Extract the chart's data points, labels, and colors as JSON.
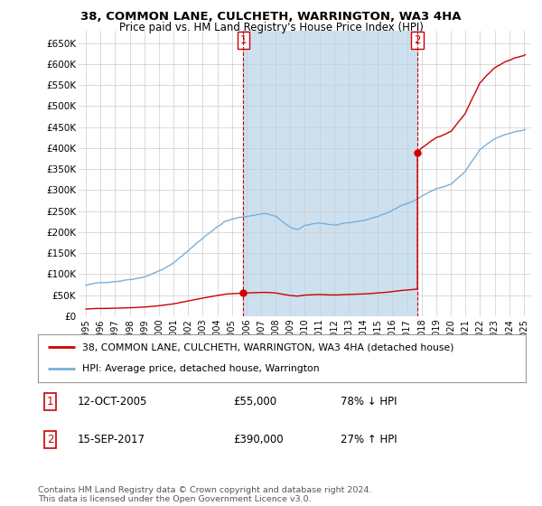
{
  "title_line1": "38, COMMON LANE, CULCHETH, WARRINGTON, WA3 4HA",
  "title_line2": "Price paid vs. HM Land Registry's House Price Index (HPI)",
  "legend_line1": "38, COMMON LANE, CULCHETH, WARRINGTON, WA3 4HA (detached house)",
  "legend_line2": "HPI: Average price, detached house, Warrington",
  "footnote": "Contains HM Land Registry data © Crown copyright and database right 2024.\nThis data is licensed under the Open Government Licence v3.0.",
  "annotation1_date": "12-OCT-2005",
  "annotation1_price": "£55,000",
  "annotation1_hpi": "78% ↓ HPI",
  "annotation2_date": "15-SEP-2017",
  "annotation2_price": "£390,000",
  "annotation2_hpi": "27% ↑ HPI",
  "vline1_x": 2005.79,
  "vline2_x": 2017.71,
  "sale1_x": 2005.79,
  "sale1_y": 55000,
  "sale2_x": 2017.71,
  "sale2_y": 390000,
  "ylim": [
    0,
    680000
  ],
  "xlim": [
    1994.5,
    2025.5
  ],
  "yticks": [
    0,
    50000,
    100000,
    150000,
    200000,
    250000,
    300000,
    350000,
    400000,
    450000,
    500000,
    550000,
    600000,
    650000
  ],
  "ytick_labels": [
    "£0",
    "£50K",
    "£100K",
    "£150K",
    "£200K",
    "£250K",
    "£300K",
    "£350K",
    "£400K",
    "£450K",
    "£500K",
    "£550K",
    "£600K",
    "£650K"
  ],
  "xticks": [
    1995,
    1996,
    1997,
    1998,
    1999,
    2000,
    2001,
    2002,
    2003,
    2004,
    2005,
    2006,
    2007,
    2008,
    2009,
    2010,
    2011,
    2012,
    2013,
    2014,
    2015,
    2016,
    2017,
    2018,
    2019,
    2020,
    2021,
    2022,
    2023,
    2024,
    2025
  ],
  "hpi_color": "#7bafd4",
  "hpi_fill_color": "#ddeeff",
  "sale_color": "#cc0000",
  "vline_color": "#cc0000",
  "background_color": "#ffffff",
  "grid_color": "#cccccc",
  "shade_color": "#cce0f0"
}
